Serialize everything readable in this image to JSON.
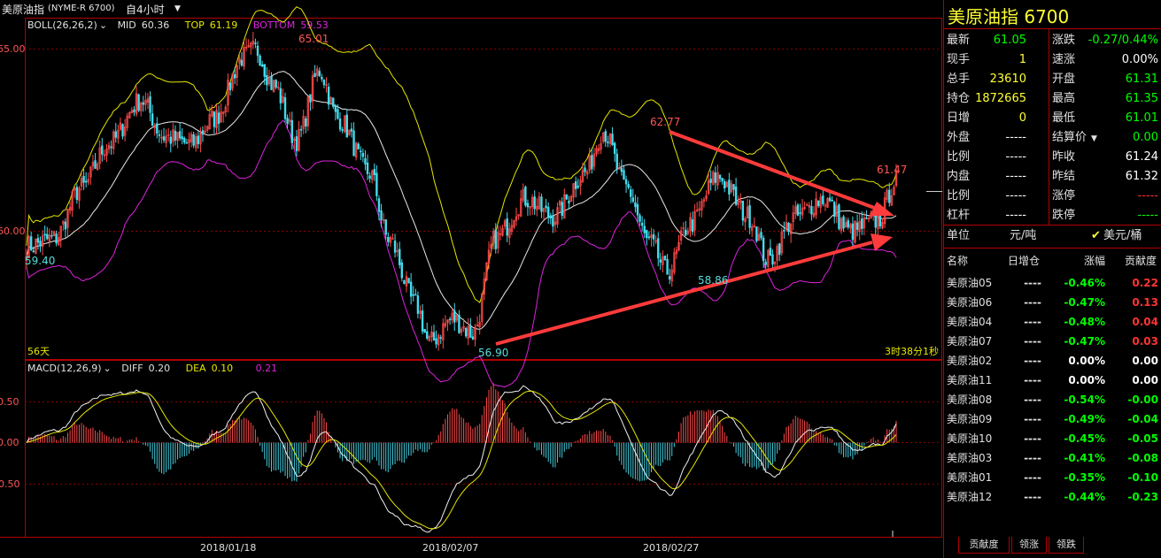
{
  "window": {
    "instrument": "美原油指",
    "code": "(NYME-R 6700)",
    "period": "自4小时"
  },
  "boll": {
    "label": "BOLL(26,26,2)",
    "mid_label": "MID",
    "mid": "60.36",
    "top_label": "TOP",
    "top": "61.19",
    "bottom_label": "BOTTOM",
    "bottom": "59.53"
  },
  "macd": {
    "label": "MACD(12,26,9)",
    "diff_label": "DIFF",
    "diff": "0.20",
    "dea_label": "DEA",
    "dea": "0.10",
    "macd": "0.21"
  },
  "price_axis": {
    "t1": "65.00",
    "t2": "60.00"
  },
  "macd_axis": {
    "t1": "0.50",
    "t2": "0.00",
    "t3": "-0.50"
  },
  "dates": [
    "2018/01/18",
    "2018/02/07",
    "2018/02/27"
  ],
  "annotations": {
    "high": "65.01",
    "peak2": "62.77",
    "last_high": "61.47",
    "low": "56.90",
    "low2": "58.86",
    "left_price": "59.40",
    "days": "56天",
    "countdown": "3时38分1秒"
  },
  "chart_data": {
    "type": "candlestick",
    "series": [
      {
        "name": "BOLL",
        "last_values": {
          "MID": 60.36,
          "TOP": 61.19,
          "BOTTOM": 59.53
        }
      },
      {
        "name": "MACD",
        "last_values": {
          "DIFF": 0.2,
          "DEA": 0.1,
          "MACD": 0.21
        }
      }
    ],
    "marked_prices": {
      "high": 65.01,
      "low": 56.9,
      "peak2": 62.77,
      "low2": 58.86,
      "last_high": 61.47
    },
    "y_ticks": [
      65.0,
      60.0
    ],
    "macd_ticks": [
      0.5,
      0.0,
      -0.5
    ],
    "x_ticks": [
      "2018/01/18",
      "2018/02/07",
      "2018/02/27"
    ]
  },
  "panel": {
    "title": "美原油指  6700",
    "quote_rows": [
      {
        "l1": "最新",
        "v1": "61.05",
        "c1": "green",
        "l2": "涨跌",
        "v2": "-0.27/0.44%",
        "c2": "green"
      },
      {
        "l1": "现手",
        "v1": "1",
        "c1": "yel",
        "l2": "速涨",
        "v2": "0.00%",
        "c2": "wht"
      },
      {
        "l1": "总手",
        "v1": "23610",
        "c1": "yel",
        "l2": "开盘",
        "v2": "61.31",
        "c2": "green"
      },
      {
        "l1": "持仓",
        "v1": "1872665",
        "c1": "yel",
        "l2": "最高",
        "v2": "61.35",
        "c2": "green"
      },
      {
        "l1": "日增",
        "v1": "0",
        "c1": "yel",
        "l2": "最低",
        "v2": "61.01",
        "c2": "green"
      },
      {
        "l1": "外盘",
        "v1": "-----",
        "c1": "wht",
        "l2": "结算价",
        "v2": "0.00",
        "c2": "green"
      },
      {
        "l1": "比例",
        "v1": "-----",
        "c1": "wht",
        "l2": "昨收",
        "v2": "61.24",
        "c2": "wht"
      },
      {
        "l1": "内盘",
        "v1": "-----",
        "c1": "wht",
        "l2": "昨结",
        "v2": "61.32",
        "c2": "wht"
      },
      {
        "l1": "比例",
        "v1": "-----",
        "c1": "wht",
        "l2": "涨停",
        "v2": "-----",
        "c2": "red"
      },
      {
        "l1": "杠杆",
        "v1": "-----",
        "c1": "wht",
        "l2": "跌停",
        "v2": "-----",
        "c2": "green"
      }
    ],
    "unit": {
      "label": "单位",
      "opt1": "元/吨",
      "opt2": "美元/桶"
    },
    "list_headers": [
      "名称",
      "日增仓",
      "涨幅",
      "贡献度"
    ],
    "list": [
      {
        "name": "美原油05",
        "add": "----",
        "chg": "-0.46%",
        "contrib": "0.22",
        "cc": "red"
      },
      {
        "name": "美原油06",
        "add": "----",
        "chg": "-0.47%",
        "contrib": "0.13",
        "cc": "red"
      },
      {
        "name": "美原油04",
        "add": "----",
        "chg": "-0.48%",
        "contrib": "0.04",
        "cc": "red"
      },
      {
        "name": "美原油07",
        "add": "----",
        "chg": "-0.47%",
        "contrib": "0.03",
        "cc": "red"
      },
      {
        "name": "美原油02",
        "add": "----",
        "chg": "0.00%",
        "contrib": "0.00",
        "cc": "wht"
      },
      {
        "name": "美原油11",
        "add": "----",
        "chg": "0.00%",
        "contrib": "0.00",
        "cc": "wht"
      },
      {
        "name": "美原油08",
        "add": "----",
        "chg": "-0.54%",
        "contrib": "-0.00",
        "cc": "green"
      },
      {
        "name": "美原油09",
        "add": "----",
        "chg": "-0.49%",
        "contrib": "-0.04",
        "cc": "green"
      },
      {
        "name": "美原油10",
        "add": "----",
        "chg": "-0.45%",
        "contrib": "-0.05",
        "cc": "green"
      },
      {
        "name": "美原油03",
        "add": "----",
        "chg": "-0.41%",
        "contrib": "-0.08",
        "cc": "green"
      },
      {
        "name": "美原油01",
        "add": "----",
        "chg": "-0.35%",
        "contrib": "-0.10",
        "cc": "green"
      },
      {
        "name": "美原油12",
        "add": "----",
        "chg": "-0.44%",
        "contrib": "-0.23",
        "cc": "green"
      }
    ],
    "tabs": [
      "贡献度",
      "领涨",
      "领跌"
    ]
  }
}
